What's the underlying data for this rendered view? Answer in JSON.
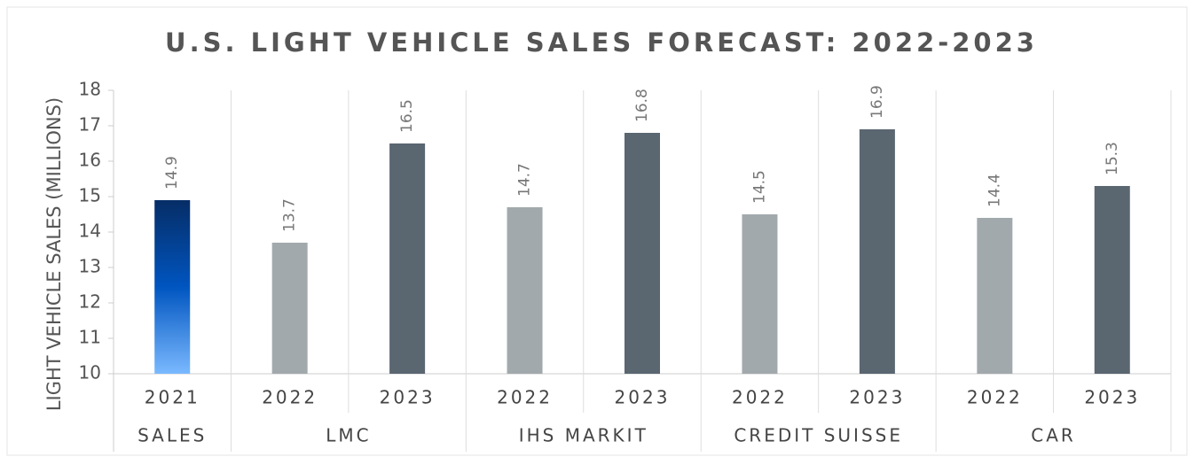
{
  "chart_data": {
    "type": "bar",
    "title": "U.S. LIGHT VEHICLE SALES FORECAST: 2022-2023",
    "y_label": "LIGHT VEHICLE SALES (MILLIONS)",
    "ylim": [
      10,
      18
    ],
    "yticks": [
      10,
      11,
      12,
      13,
      14,
      15,
      16,
      17,
      18
    ],
    "groups": [
      {
        "name": "SALES",
        "categories": [
          "2021"
        ],
        "values": [
          14.9
        ],
        "colors": [
          [
            "#062d66",
            "#0055c0",
            "#7ab9ff"
          ]
        ]
      },
      {
        "name": "LMC",
        "categories": [
          "2022",
          "2023"
        ],
        "values": [
          13.7,
          16.5
        ],
        "colors": [
          "#a2a9ad",
          "#5a6670"
        ]
      },
      {
        "name": "IHS MARKIT",
        "categories": [
          "2022",
          "2023"
        ],
        "values": [
          14.7,
          16.8
        ],
        "colors": [
          "#a2a9ad",
          "#5a6670"
        ]
      },
      {
        "name": "CREDIT SUISSE",
        "categories": [
          "2022",
          "2023"
        ],
        "values": [
          14.5,
          16.9
        ],
        "colors": [
          "#a2a9ad",
          "#5a6670"
        ]
      },
      {
        "name": "CAR",
        "categories": [
          "2022",
          "2023"
        ],
        "values": [
          14.4,
          15.3
        ],
        "colors": [
          "#a2a9ad",
          "#5a6670"
        ]
      }
    ]
  }
}
